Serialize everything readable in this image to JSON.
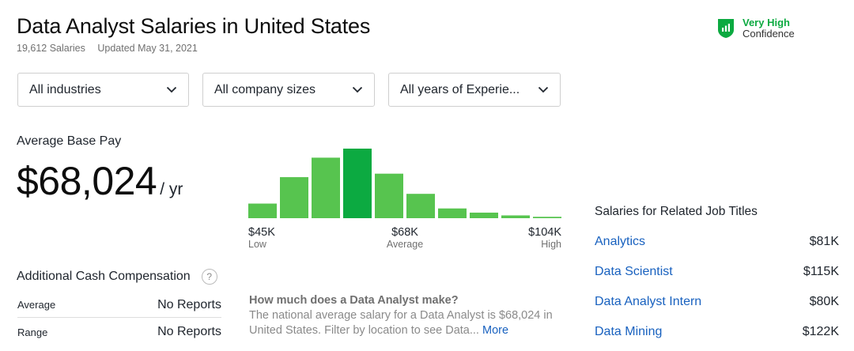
{
  "header": {
    "title": "Data Analyst Salaries in United States",
    "salary_count": "19,612 Salaries",
    "updated": "Updated May 31, 2021",
    "confidence": {
      "level": "Very High",
      "label": "Confidence",
      "icon": "shield-bars-icon",
      "color": "#0caa41"
    }
  },
  "filters": [
    {
      "label": "All industries",
      "icon": "chevron-down-icon"
    },
    {
      "label": "All company sizes",
      "icon": "chevron-down-icon"
    },
    {
      "label": "All years of Experie...",
      "icon": "chevron-down-icon"
    }
  ],
  "pay": {
    "label": "Average Base Pay",
    "amount": "$68,024",
    "unit": "/ yr"
  },
  "histogram": {
    "bars": [
      0.21,
      0.59,
      0.87,
      1.0,
      0.64,
      0.35,
      0.14,
      0.08,
      0.04,
      0.02
    ],
    "highlight_index": 3,
    "colors": {
      "bar": "#57c44f",
      "highlight": "#0caa41"
    },
    "low_value": "$45K",
    "low_label": "Low",
    "avg_value": "$68K",
    "avg_label": "Average",
    "high_value": "$104K",
    "high_label": "High"
  },
  "cash": {
    "title": "Additional Cash Compensation",
    "help": "?",
    "rows": [
      {
        "label": "Average",
        "value": "No Reports"
      },
      {
        "label": "Range",
        "value": "No Reports"
      }
    ]
  },
  "faq": {
    "question": "How much does a Data Analyst make?",
    "answer": "The national average salary for a Data Analyst is $68,024 in United States. Filter by location to see Data...",
    "more": "More"
  },
  "related": {
    "title": "Salaries for Related Job Titles",
    "items": [
      {
        "name": "Analytics",
        "pay": "$81K"
      },
      {
        "name": "Data Scientist",
        "pay": "$115K"
      },
      {
        "name": "Data Analyst Intern",
        "pay": "$80K"
      },
      {
        "name": "Data Mining",
        "pay": "$122K"
      }
    ]
  }
}
